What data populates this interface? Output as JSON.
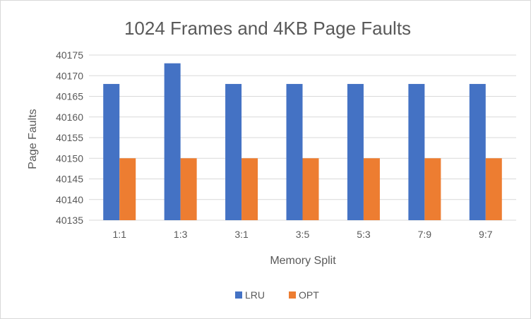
{
  "chart_data": {
    "type": "bar",
    "title": "1024 Frames and 4KB Page Faults",
    "xlabel": "Memory Split",
    "ylabel": "Page Faults",
    "categories": [
      "1:1",
      "1:3",
      "3:1",
      "3:5",
      "5:3",
      "7:9",
      "9:7"
    ],
    "series": [
      {
        "name": "LRU",
        "color": "#4472C4",
        "values": [
          40168,
          40173,
          40168,
          40168,
          40168,
          40168,
          40168
        ]
      },
      {
        "name": "OPT",
        "color": "#ED7D31",
        "values": [
          40150,
          40150,
          40150,
          40150,
          40150,
          40150,
          40150
        ]
      }
    ],
    "ylim": [
      40135,
      40175
    ],
    "yticks": [
      40135,
      40140,
      40145,
      40150,
      40155,
      40160,
      40165,
      40170,
      40175
    ],
    "grid": true,
    "legend": "bottom-center"
  }
}
